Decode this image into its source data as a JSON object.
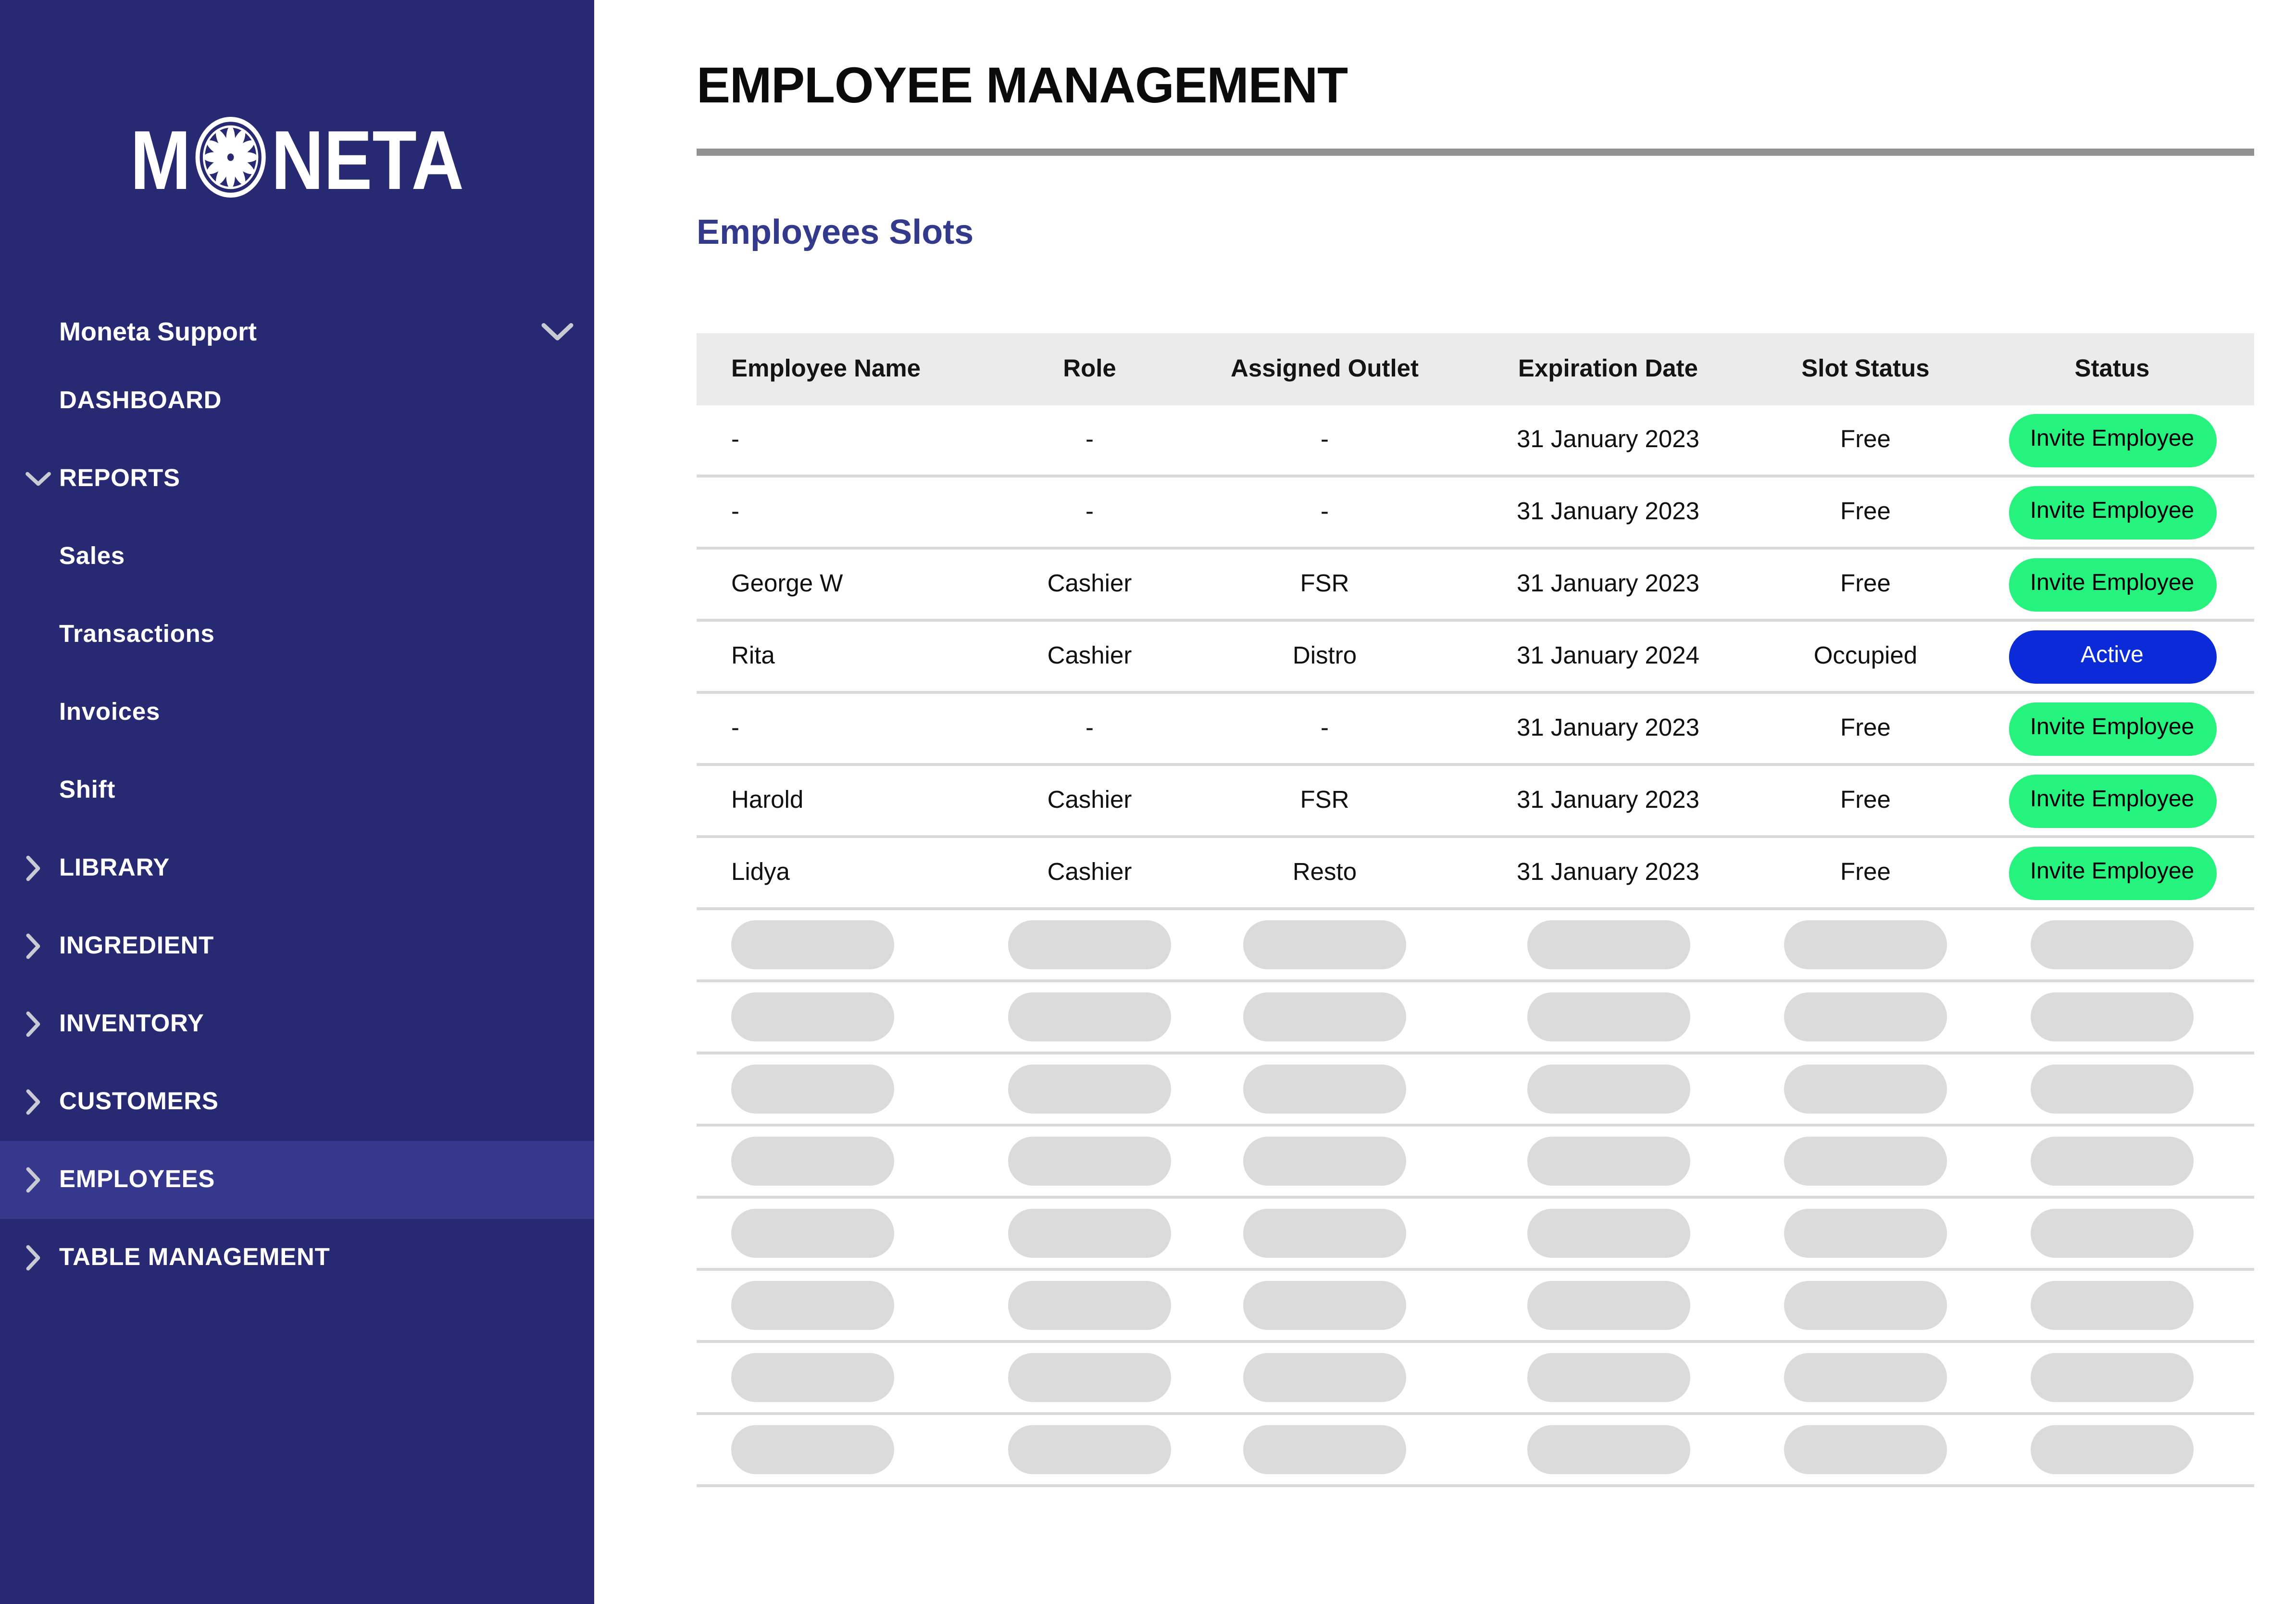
{
  "colors": {
    "sidebar_bg": "#272A72",
    "sidebar_active_bg": "#36388E",
    "section_title_blue": "#333A8C",
    "invite_green": "#25F37E",
    "active_blue": "#0B2BD8",
    "table_header_bg": "#EBEBEB",
    "divider_gray": "#929292",
    "skeleton_gray": "#DBDBDB"
  },
  "sidebar": {
    "logo": {
      "prefix": "M",
      "suffix": "NETA",
      "o_icon": "flower-coin-icon"
    },
    "account": {
      "label": "Moneta Support",
      "icon": "chevron-down-icon"
    },
    "items": [
      {
        "label": "DASHBOARD",
        "icon": null,
        "level": "top"
      },
      {
        "label": "REPORTS",
        "icon": "chevron-down-icon",
        "level": "top",
        "expanded": true
      },
      {
        "label": "Sales",
        "icon": null,
        "level": "sub"
      },
      {
        "label": "Transactions",
        "icon": null,
        "level": "sub"
      },
      {
        "label": "Invoices",
        "icon": null,
        "level": "sub"
      },
      {
        "label": "Shift",
        "icon": null,
        "level": "sub"
      },
      {
        "label": "LIBRARY",
        "icon": "chevron-right-icon",
        "level": "top"
      },
      {
        "label": "INGREDIENT",
        "icon": "chevron-right-icon",
        "level": "top"
      },
      {
        "label": "INVENTORY",
        "icon": "chevron-right-icon",
        "level": "top"
      },
      {
        "label": "CUSTOMERS",
        "icon": "chevron-right-icon",
        "level": "top"
      },
      {
        "label": "EMPLOYEES",
        "icon": "chevron-right-icon",
        "level": "top",
        "active": true
      },
      {
        "label": "TABLE MANAGEMENT",
        "icon": "chevron-right-icon",
        "level": "top"
      }
    ]
  },
  "main": {
    "title": "EMPLOYEE MANAGEMENT",
    "section_title": "Employees Slots",
    "table": {
      "columns": [
        "Employee Name",
        "Role",
        "Assigned Outlet",
        "Expiration Date",
        "Slot Status",
        "Status"
      ],
      "rows": [
        {
          "name": "-",
          "role": "-",
          "outlet": "-",
          "expiration_date": "31 January 2023",
          "slot_status": "Free",
          "status": {
            "label": "Invite Employee",
            "variant": "invite"
          }
        },
        {
          "name": "-",
          "role": "-",
          "outlet": "-",
          "expiration_date": "31 January 2023",
          "slot_status": "Free",
          "status": {
            "label": "Invite Employee",
            "variant": "invite"
          }
        },
        {
          "name": "George W",
          "role": "Cashier",
          "outlet": "FSR",
          "expiration_date": "31 January 2023",
          "slot_status": "Free",
          "status": {
            "label": "Invite Employee",
            "variant": "invite"
          }
        },
        {
          "name": "Rita",
          "role": "Cashier",
          "outlet": "Distro",
          "expiration_date": "31 January 2024",
          "slot_status": "Occupied",
          "status": {
            "label": "Active",
            "variant": "active"
          }
        },
        {
          "name": "-",
          "role": "-",
          "outlet": "-",
          "expiration_date": "31 January 2023",
          "slot_status": "Free",
          "status": {
            "label": "Invite Employee",
            "variant": "invite"
          }
        },
        {
          "name": "Harold",
          "role": "Cashier",
          "outlet": "FSR",
          "expiration_date": "31 January 2023",
          "slot_status": "Free",
          "status": {
            "label": "Invite Employee",
            "variant": "invite"
          }
        },
        {
          "name": "Lidya",
          "role": "Cashier",
          "outlet": "Resto",
          "expiration_date": "31 January 2023",
          "slot_status": "Free",
          "status": {
            "label": "Invite Employee",
            "variant": "invite"
          }
        }
      ],
      "skeleton_row_count": 8
    }
  }
}
